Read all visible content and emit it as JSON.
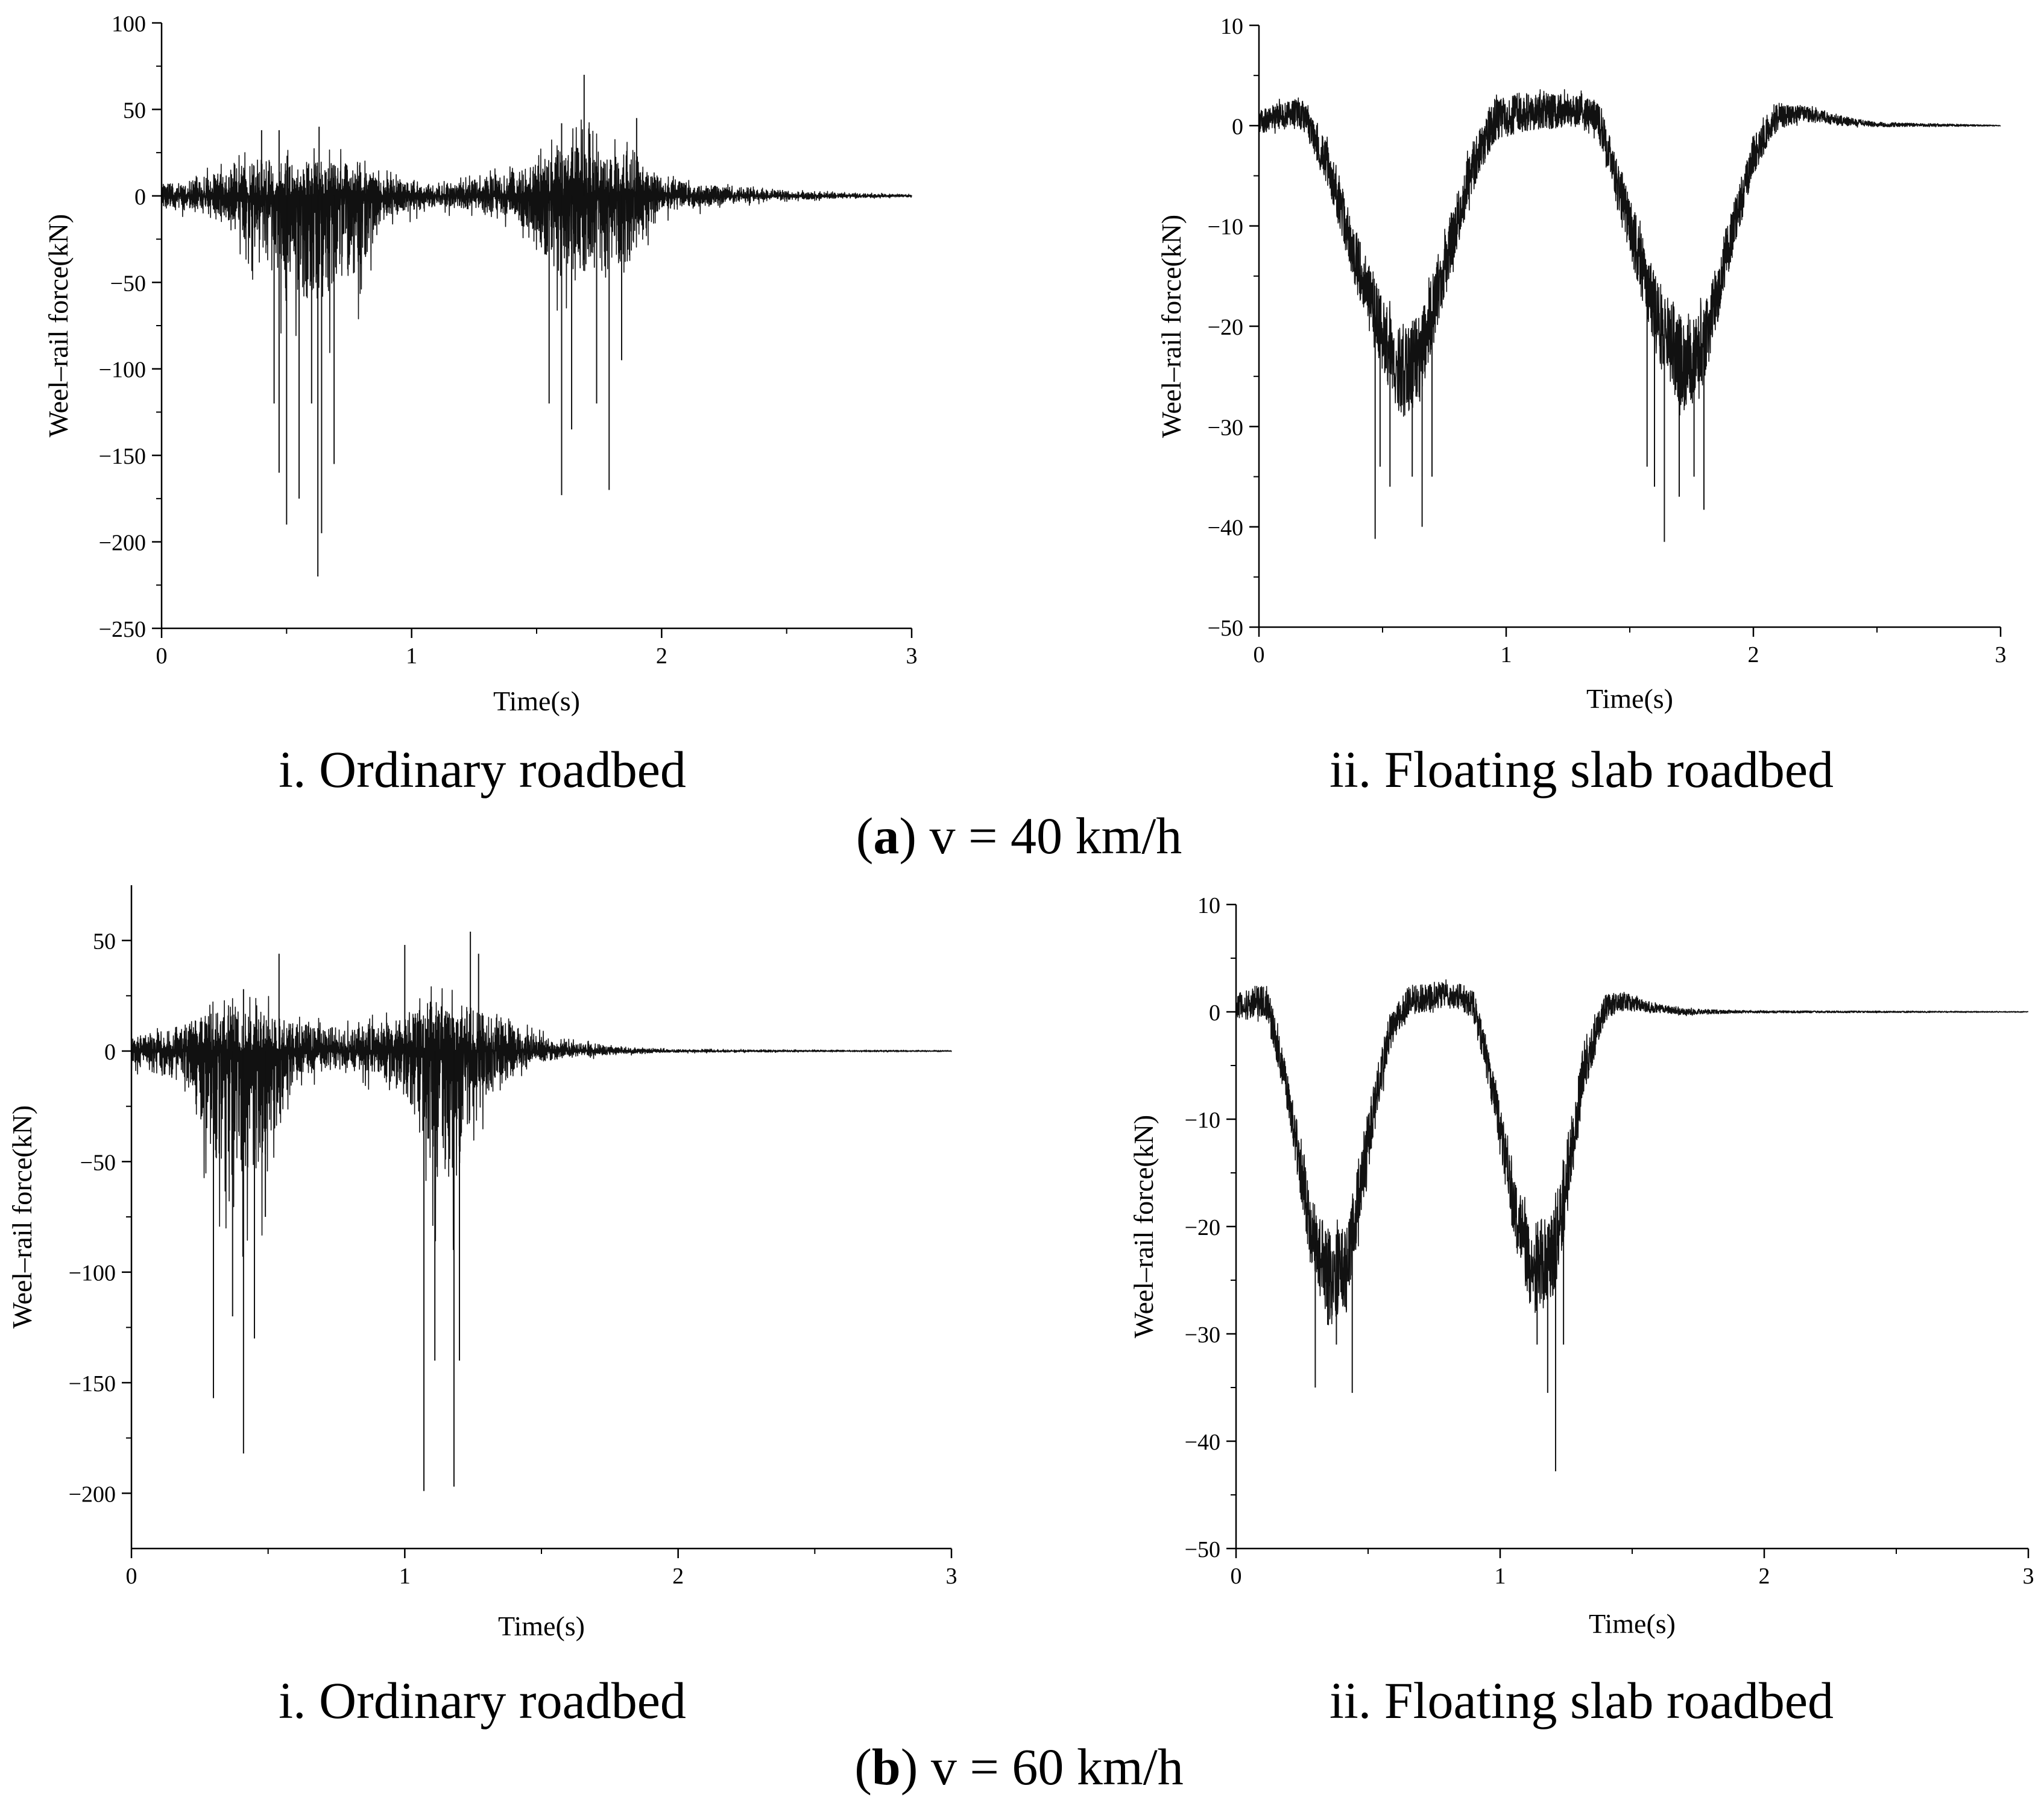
{
  "figure": {
    "panel_a": {
      "prefix": "(",
      "letter": "a",
      "suffix": ") v = 40 km/h",
      "left_caption": "i. Ordinary roadbed",
      "right_caption": "ii. Floating slab roadbed"
    },
    "panel_b": {
      "prefix": "(",
      "letter": "b",
      "suffix": ") v = 60 km/h",
      "left_caption": "i. Ordinary roadbed",
      "right_caption": "ii. Floating slab roadbed"
    }
  },
  "chart_data": [
    {
      "id": "a-i",
      "type": "line",
      "xlabel": "Time(s)",
      "ylabel": "Weel–rail force(kN)",
      "xlim": [
        0,
        3
      ],
      "ylim": [
        -250,
        100
      ],
      "xticks": [
        "0",
        "1",
        "2",
        "3"
      ],
      "yticks": [
        "100",
        "50",
        "0",
        "−50",
        "−100",
        "−150",
        "−200",
        "−250"
      ],
      "yticks_values": [
        100,
        50,
        0,
        -50,
        -100,
        -150,
        -200,
        -250
      ],
      "series": [
        {
          "name": "wheel-rail force",
          "envelope": {
            "t": [
              0,
              0.25,
              0.4,
              0.5,
              0.6,
              0.7,
              0.8,
              0.9,
              1.1,
              1.4,
              1.5,
              1.6,
              1.7,
              1.8,
              1.9,
              2.0,
              2.3,
              2.6,
              3.0
            ],
            "upper": [
              10,
              20,
              30,
              30,
              28,
              28,
              25,
              15,
              8,
              20,
              28,
              40,
              45,
              35,
              30,
              15,
              6,
              3,
              1
            ],
            "lower": [
              -10,
              -20,
              -60,
              -90,
              -100,
              -95,
              -70,
              -20,
              -10,
              -20,
              -50,
              -80,
              -75,
              -70,
              -60,
              -15,
              -6,
              -3,
              -1
            ]
          },
          "spikes": [
            [
              0.47,
              -160
            ],
            [
              0.5,
              -190
            ],
            [
              0.55,
              -175
            ],
            [
              0.6,
              -120
            ],
            [
              0.625,
              -220
            ],
            [
              0.64,
              -195
            ],
            [
              0.69,
              -155
            ],
            [
              0.45,
              -120
            ],
            [
              1.55,
              -120
            ],
            [
              1.6,
              -173
            ],
            [
              1.64,
              -135
            ],
            [
              1.74,
              -120
            ],
            [
              1.79,
              -170
            ],
            [
              1.84,
              -95
            ],
            [
              1.69,
              70
            ],
            [
              1.6,
              42
            ],
            [
              1.9,
              45
            ],
            [
              0.47,
              38
            ],
            [
              0.63,
              40
            ],
            [
              0.4,
              38
            ]
          ]
        }
      ]
    },
    {
      "id": "a-ii",
      "type": "line",
      "xlabel": "Time(s)",
      "ylabel": "Weel–rail force(kN)",
      "xlim": [
        0,
        3
      ],
      "ylim": [
        -50,
        10
      ],
      "xticks": [
        "0",
        "1",
        "2",
        "3"
      ],
      "yticks": [
        "10",
        "0",
        "−10",
        "−20",
        "−30",
        "−40",
        "−50"
      ],
      "yticks_values": [
        10,
        0,
        -10,
        -20,
        -30,
        -40,
        -50
      ],
      "series": [
        {
          "name": "wheel-rail force",
          "mean": {
            "t": [
              0,
              0.1,
              0.18,
              0.28,
              0.4,
              0.5,
              0.58,
              0.65,
              0.75,
              0.85,
              0.95,
              1.05,
              1.3,
              1.38,
              1.5,
              1.62,
              1.72,
              1.8,
              1.9,
              2.0,
              2.1,
              2.2,
              2.35,
              2.5,
              3.0
            ],
            "v": [
              0.3,
              1.2,
              1,
              -4,
              -14,
              -21,
              -25,
              -23,
              -14,
              -5,
              0.5,
              1.3,
              1.5,
              0,
              -10,
              -20,
              -24,
              -22,
              -12,
              -3,
              1,
              1.2,
              0.5,
              0.1,
              0
            ]
          },
          "noise_amplitude": [
            [
              0,
              1.5
            ],
            [
              0.2,
              2
            ],
            [
              0.4,
              4
            ],
            [
              0.6,
              6
            ],
            [
              0.7,
              5
            ],
            [
              0.9,
              3
            ],
            [
              1.3,
              2
            ],
            [
              1.5,
              4
            ],
            [
              1.7,
              6
            ],
            [
              1.8,
              5
            ],
            [
              2.0,
              2.5
            ],
            [
              2.2,
              1
            ],
            [
              2.5,
              0.3
            ],
            [
              3.0,
              0.05
            ]
          ],
          "spikes": [
            [
              0.47,
              -41.2
            ],
            [
              0.49,
              -34
            ],
            [
              0.53,
              -36
            ],
            [
              0.62,
              -35
            ],
            [
              0.66,
              -40
            ],
            [
              0.7,
              -35
            ],
            [
              1.6,
              -36
            ],
            [
              1.64,
              -41.5
            ],
            [
              1.7,
              -37
            ],
            [
              1.76,
              -35
            ],
            [
              1.8,
              -38.3
            ],
            [
              1.57,
              -34
            ]
          ]
        }
      ]
    },
    {
      "id": "b-i",
      "type": "line",
      "xlabel": "Time(s)",
      "ylabel": "Weel–rail force(kN)",
      "xlim": [
        0,
        3
      ],
      "ylim": [
        -225,
        75
      ],
      "xticks": [
        "0",
        "1",
        "2",
        "3"
      ],
      "yticks": [
        "50",
        "0",
        "−50",
        "−100",
        "−150",
        "−200"
      ],
      "yticks_values": [
        50,
        0,
        -50,
        -100,
        -150,
        -200
      ],
      "series": [
        {
          "name": "wheel-rail force",
          "envelope": {
            "t": [
              0,
              0.2,
              0.3,
              0.4,
              0.5,
              0.6,
              0.8,
              1.0,
              1.1,
              1.2,
              1.3,
              1.45,
              1.6,
              1.8,
              2.0,
              2.5,
              3.0
            ],
            "upper": [
              8,
              18,
              25,
              25,
              25,
              18,
              14,
              22,
              30,
              30,
              25,
              12,
              6,
              2,
              1,
              0.6,
              0.4
            ],
            "lower": [
              -10,
              -25,
              -80,
              -95,
              -85,
              -20,
              -12,
              -30,
              -90,
              -90,
              -35,
              -10,
              -5,
              -2,
              -1,
              -0.6,
              -0.4
            ]
          },
          "spikes": [
            [
              0.3,
              -157
            ],
            [
              0.37,
              -120
            ],
            [
              0.41,
              -182
            ],
            [
              0.45,
              -130
            ],
            [
              0.49,
              -75
            ],
            [
              1.07,
              -199
            ],
            [
              1.11,
              -140
            ],
            [
              1.18,
              -197
            ],
            [
              1.2,
              -140
            ],
            [
              1.24,
              54
            ],
            [
              1.27,
              44
            ],
            [
              0.54,
              44
            ],
            [
              1.0,
              48
            ],
            [
              0.41,
              28
            ]
          ]
        }
      ]
    },
    {
      "id": "b-ii",
      "type": "line",
      "xlabel": "Time(s)",
      "ylabel": "Weel–rail force(kN)",
      "xlim": [
        0,
        3
      ],
      "ylim": [
        -50,
        10
      ],
      "xticks": [
        "0",
        "1",
        "2",
        "3"
      ],
      "yticks": [
        "10",
        "0",
        "−10",
        "−20",
        "−30",
        "−40",
        "−50"
      ],
      "yticks_values": [
        10,
        0,
        -10,
        -20,
        -30,
        -40,
        -50
      ],
      "series": [
        {
          "name": "wheel-rail force",
          "mean": {
            "t": [
              0,
              0.07,
              0.12,
              0.2,
              0.28,
              0.35,
              0.42,
              0.5,
              0.58,
              0.65,
              0.75,
              0.85,
              0.9,
              0.98,
              1.05,
              1.12,
              1.2,
              1.25,
              1.32,
              1.4,
              1.47,
              1.55,
              1.7,
              2.0,
              3.0
            ],
            "v": [
              0.5,
              1,
              0.8,
              -8,
              -20,
              -25,
              -24,
              -12,
              -2,
              1,
              1.5,
              1.5,
              0.5,
              -8,
              -18,
              -24,
              -23,
              -16,
              -5,
              0.5,
              1,
              0.5,
              0,
              0,
              0
            ]
          },
          "noise_amplitude": [
            [
              0,
              1.5
            ],
            [
              0.2,
              2.5
            ],
            [
              0.35,
              6
            ],
            [
              0.45,
              5
            ],
            [
              0.6,
              2
            ],
            [
              0.85,
              1.5
            ],
            [
              1.0,
              3
            ],
            [
              1.15,
              6
            ],
            [
              1.25,
              5
            ],
            [
              1.4,
              1.5
            ],
            [
              1.6,
              0.5
            ],
            [
              1.9,
              0.15
            ],
            [
              3.0,
              0.05
            ]
          ],
          "spikes": [
            [
              0.3,
              -35
            ],
            [
              0.38,
              -31
            ],
            [
              0.44,
              -35.5
            ],
            [
              1.14,
              -31
            ],
            [
              1.18,
              -35.5
            ],
            [
              1.21,
              -42.8
            ],
            [
              1.24,
              -31
            ]
          ]
        }
      ]
    }
  ]
}
